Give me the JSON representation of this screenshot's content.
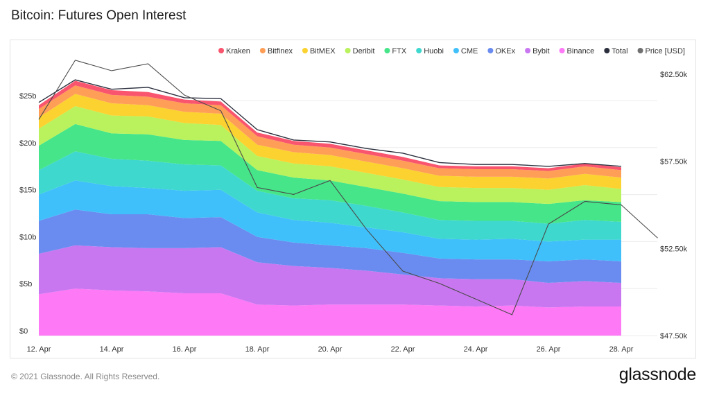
{
  "title": "Bitcoin: Futures Open Interest",
  "footer": "© 2021 Glassnode. All Rights Reserved.",
  "brand": "glassnode",
  "watermark": "glassnode",
  "chart_data": {
    "type": "area",
    "stacked": true,
    "title": "Bitcoin: Futures Open Interest",
    "x": [
      "12. Apr",
      "13. Apr",
      "14. Apr",
      "15. Apr",
      "16. Apr",
      "17. Apr",
      "18. Apr",
      "19. Apr",
      "20. Apr",
      "21. Apr",
      "22. Apr",
      "23. Apr",
      "24. Apr",
      "25. Apr",
      "26. Apr",
      "27. Apr",
      "28. Apr"
    ],
    "xticks": [
      "12. Apr",
      "14. Apr",
      "16. Apr",
      "18. Apr",
      "20. Apr",
      "22. Apr",
      "24. Apr",
      "26. Apr",
      "28. Apr"
    ],
    "y_left": {
      "ticks": [
        0,
        5,
        10,
        15,
        20,
        25
      ],
      "tick_labels": [
        "$0",
        "$5b",
        "$10b",
        "$15b",
        "$20b",
        "$25b"
      ],
      "range": [
        0,
        27.8
      ]
    },
    "y_right": {
      "ticks": [
        47500,
        52500,
        57500,
        62500
      ],
      "tick_labels": [
        "$47.50k",
        "$52.50k",
        "$57.50k",
        "$62.50k"
      ],
      "range": [
        47500,
        62500
      ]
    },
    "grid": true,
    "legend_position": "top-right",
    "series": [
      {
        "name": "Binance",
        "color": "#fd79f6",
        "values": [
          4.4,
          5.0,
          4.8,
          4.7,
          4.5,
          4.5,
          3.3,
          3.2,
          3.3,
          3.3,
          3.3,
          3.2,
          3.1,
          3.2,
          3.0,
          3.1,
          3.1
        ]
      },
      {
        "name": "Bybit",
        "color": "#c977f0",
        "values": [
          4.3,
          4.6,
          4.6,
          4.6,
          4.8,
          4.9,
          4.5,
          4.2,
          3.9,
          3.6,
          3.2,
          2.9,
          2.9,
          2.8,
          2.6,
          2.7,
          2.5
        ]
      },
      {
        "name": "OKEx",
        "color": "#6a8cf0",
        "values": [
          3.5,
          3.8,
          3.5,
          3.6,
          3.2,
          3.2,
          2.7,
          2.5,
          2.4,
          2.4,
          2.3,
          2.1,
          2.1,
          2.1,
          2.3,
          2.3,
          2.3
        ]
      },
      {
        "name": "CME",
        "color": "#40c0fa",
        "values": [
          2.8,
          3.1,
          3.0,
          2.8,
          2.9,
          2.9,
          2.6,
          2.4,
          2.4,
          2.2,
          2.2,
          2.1,
          2.1,
          2.2,
          2.1,
          2.1,
          2.3
        ]
      },
      {
        "name": "Huobi",
        "color": "#3fd8ce",
        "values": [
          2.6,
          3.1,
          2.9,
          2.9,
          2.8,
          2.6,
          2.3,
          2.3,
          2.4,
          2.3,
          2.1,
          2.0,
          2.0,
          1.9,
          1.9,
          2.1,
          1.9
        ]
      },
      {
        "name": "FTX",
        "color": "#46e589",
        "values": [
          2.6,
          2.9,
          2.7,
          2.8,
          2.6,
          2.6,
          2.2,
          2.2,
          2.1,
          2.0,
          2.0,
          2.0,
          2.0,
          2.0,
          2.1,
          2.1,
          2.1
        ]
      },
      {
        "name": "Deribit",
        "color": "#b9f25c",
        "values": [
          1.8,
          1.9,
          1.9,
          1.9,
          1.8,
          1.7,
          1.5,
          1.5,
          1.5,
          1.5,
          1.5,
          1.5,
          1.5,
          1.5,
          1.5,
          1.6,
          1.4
        ]
      },
      {
        "name": "BitMEX",
        "color": "#fbd22f",
        "values": [
          1.2,
          1.3,
          1.3,
          1.2,
          1.2,
          1.2,
          1.2,
          1.2,
          1.2,
          1.2,
          1.2,
          1.2,
          1.2,
          1.2,
          1.2,
          1.2,
          1.2
        ]
      },
      {
        "name": "Bitfinex",
        "color": "#ff9f57",
        "values": [
          0.9,
          0.9,
          0.9,
          0.9,
          0.9,
          0.9,
          0.9,
          0.8,
          0.8,
          0.8,
          0.8,
          0.8,
          0.8,
          0.8,
          0.8,
          0.8,
          0.8
        ]
      },
      {
        "name": "Kraken",
        "color": "#f9556e",
        "values": [
          0.4,
          0.5,
          0.5,
          0.5,
          0.4,
          0.4,
          0.4,
          0.4,
          0.4,
          0.4,
          0.4,
          0.3,
          0.3,
          0.3,
          0.3,
          0.3,
          0.3
        ]
      }
    ],
    "total": {
      "name": "Total",
      "color": "#2b2f3d",
      "values": [
        24.8,
        27.2,
        26.2,
        26.4,
        25.3,
        25.2,
        21.9,
        20.8,
        20.6,
        19.9,
        19.4,
        18.4,
        18.2,
        18.2,
        18.0,
        18.3,
        18.0
      ]
    },
    "price": {
      "name": "Price [USD]",
      "color": "#4a4a4a",
      "axis": "right",
      "x": [
        "12. Apr",
        "13. Apr",
        "14. Apr",
        "15. Apr",
        "16. Apr",
        "17. Apr",
        "18. Apr",
        "19. Apr",
        "20. Apr",
        "21. Apr",
        "22. Apr",
        "23. Apr",
        "24. Apr",
        "25. Apr",
        "26. Apr",
        "27. Apr",
        "28. Apr",
        "29. Apr"
      ],
      "values": [
        59900,
        63300,
        62700,
        63100,
        61300,
        60400,
        56000,
        55600,
        56400,
        53600,
        51200,
        50500,
        49600,
        48700,
        53900,
        55200,
        55000,
        53100
      ]
    },
    "legend": [
      "Kraken",
      "Bitfinex",
      "BitMEX",
      "Deribit",
      "FTX",
      "Huobi",
      "CME",
      "OKEx",
      "Bybit",
      "Binance",
      "Total",
      "Price [USD]"
    ]
  }
}
